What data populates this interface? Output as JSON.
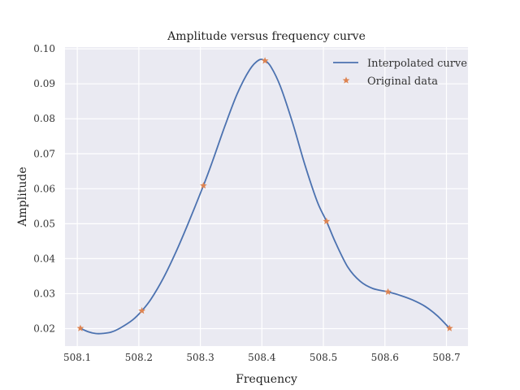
{
  "chart_data": {
    "type": "line",
    "title": "Amplitude versus frequency curve",
    "xlabel": "Frequency",
    "ylabel": "Amplitude",
    "xlim": [
      508.08,
      508.735
    ],
    "ylim": [
      0.015,
      0.1005
    ],
    "x_ticks": [
      "508.1",
      "508.2",
      "508.3",
      "508.4",
      "508.5",
      "508.6",
      "508.7"
    ],
    "y_ticks": [
      "0.02",
      "0.03",
      "0.04",
      "0.05",
      "0.06",
      "0.07",
      "0.08",
      "0.09",
      "0.10"
    ],
    "grid": true,
    "legend_position": "top-right",
    "legend": [
      "Interpolated curve",
      "Original data"
    ],
    "series": [
      {
        "name": "Interpolated curve",
        "kind": "line",
        "color": "#4c72b0",
        "x": [
          508.105,
          508.118,
          508.13,
          508.14,
          508.155,
          508.17,
          508.19,
          508.205,
          508.22,
          508.24,
          508.26,
          508.28,
          508.305,
          508.32,
          508.34,
          508.36,
          508.38,
          508.395,
          508.405,
          508.415,
          508.43,
          508.45,
          508.47,
          508.49,
          508.505,
          508.52,
          508.54,
          508.56,
          508.58,
          508.605,
          508.625,
          508.645,
          508.665,
          508.685,
          508.705
        ],
        "y": [
          0.0201,
          0.0191,
          0.0186,
          0.0186,
          0.019,
          0.0202,
          0.0225,
          0.0251,
          0.0285,
          0.0345,
          0.0418,
          0.05,
          0.0609,
          0.068,
          0.078,
          0.0872,
          0.094,
          0.0968,
          0.0966,
          0.0948,
          0.0893,
          0.0788,
          0.0668,
          0.0563,
          0.0507,
          0.0445,
          0.0375,
          0.0335,
          0.0315,
          0.0305,
          0.0295,
          0.0282,
          0.0264,
          0.0237,
          0.0201
        ]
      },
      {
        "name": "Original data",
        "kind": "scatter",
        "marker": "star",
        "color": "#dd8452",
        "x": [
          508.105,
          508.205,
          508.305,
          508.405,
          508.505,
          508.605,
          508.705
        ],
        "y": [
          0.0201,
          0.0251,
          0.0609,
          0.0966,
          0.0507,
          0.0305,
          0.0201
        ]
      }
    ]
  }
}
